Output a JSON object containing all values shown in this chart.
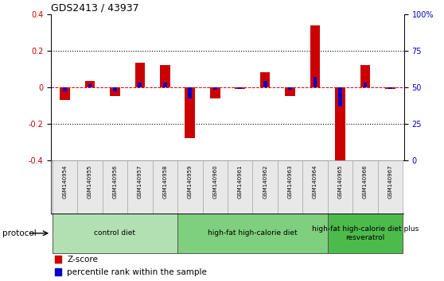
{
  "title": "GDS2413 / 43937",
  "samples": [
    "GSM140954",
    "GSM140955",
    "GSM140956",
    "GSM140957",
    "GSM140958",
    "GSM140959",
    "GSM140960",
    "GSM140961",
    "GSM140962",
    "GSM140963",
    "GSM140964",
    "GSM140965",
    "GSM140966",
    "GSM140967"
  ],
  "zscore": [
    -0.07,
    0.035,
    -0.05,
    0.135,
    0.12,
    -0.28,
    -0.06,
    -0.01,
    0.08,
    -0.05,
    0.34,
    -0.42,
    0.12,
    -0.01
  ],
  "pct_rank": [
    47,
    52,
    47,
    53,
    53,
    42,
    48,
    49,
    54,
    48,
    57,
    37,
    53,
    49
  ],
  "ylim": [
    -0.4,
    0.4
  ],
  "pct_ylim": [
    0,
    100
  ],
  "yticks_left": [
    -0.4,
    -0.2,
    0.0,
    0.2,
    0.4
  ],
  "yticks_right": [
    0,
    25,
    50,
    75,
    100
  ],
  "dotted_lines": [
    0.2,
    -0.2
  ],
  "zero_line": 0.0,
  "groups": [
    {
      "label": "control diet",
      "start": 0,
      "end": 4,
      "color": "#b2e0b2"
    },
    {
      "label": "high-fat high-calorie diet",
      "start": 5,
      "end": 10,
      "color": "#7ecf7e"
    },
    {
      "label": "high-fat high-calorie diet plus\nresveratrol",
      "start": 11,
      "end": 13,
      "color": "#4cbb4c"
    }
  ],
  "bar_color_zscore": "#cc0000",
  "bar_color_pct": "#0000cc",
  "bar_width": 0.4,
  "pct_bar_width": 0.15,
  "legend_zscore": "Z-score",
  "legend_pct": "percentile rank within the sample",
  "protocol_label": "protocol",
  "bg_color": "#ffffff",
  "plot_bg": "#ffffff",
  "tick_label_color_left": "#cc0000",
  "tick_label_color_right": "#0000cc",
  "title_color": "#000000",
  "grid_color": "#000000",
  "zero_line_color": "#cc0000",
  "label_bg": "#d8d8d8",
  "label_box": "#e8e8e8"
}
